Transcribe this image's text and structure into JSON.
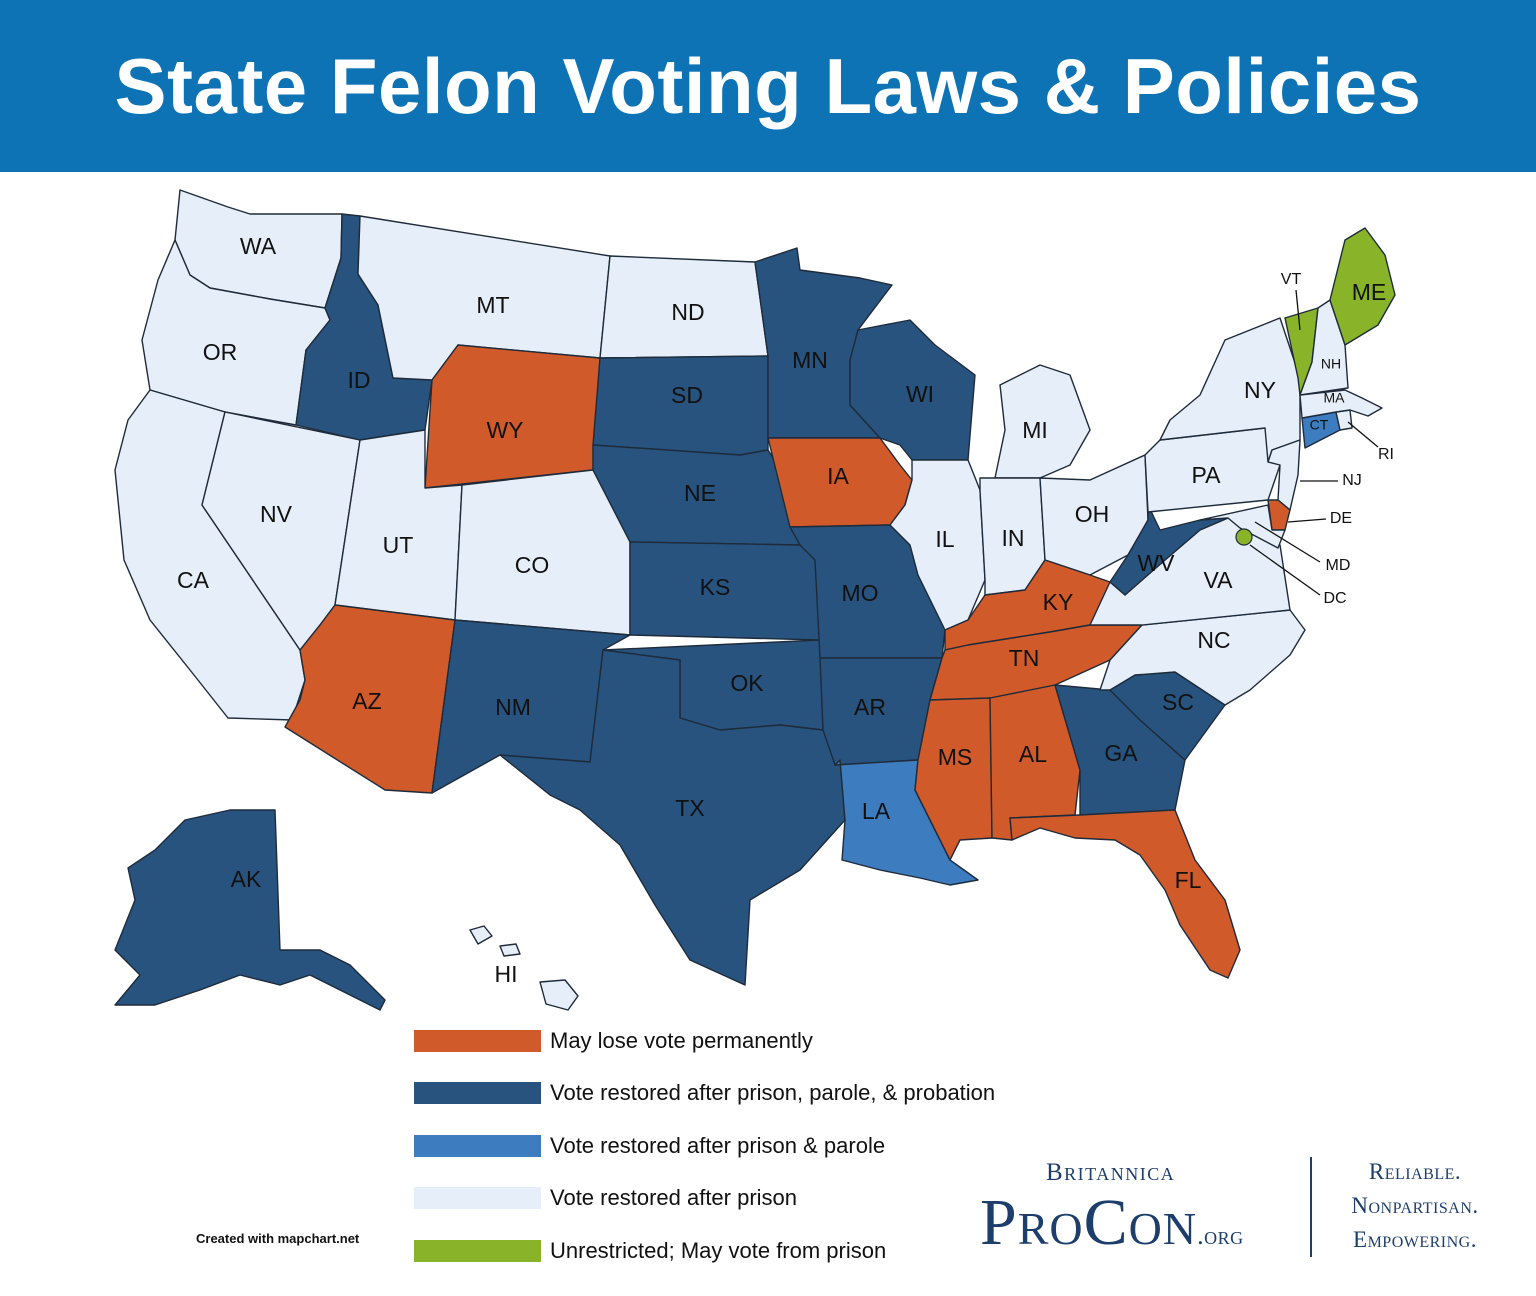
{
  "title": "State Felon Voting Laws & Policies",
  "categories": {
    "permanent": {
      "label": "May lose vote permanently",
      "color": "#d15a2a"
    },
    "ppp": {
      "label": "Vote restored after prison, parole, & probation",
      "color": "#28537e"
    },
    "pp": {
      "label": "Vote restored after prison & parole",
      "color": "#3e7cc0"
    },
    "prison": {
      "label": "Vote restored after prison",
      "color": "#e6eef9"
    },
    "unrestricted": {
      "label": "Unrestricted; May vote from prison",
      "color": "#89b42a"
    }
  },
  "states": [
    {
      "abbr": "WA",
      "category": "prison"
    },
    {
      "abbr": "OR",
      "category": "prison"
    },
    {
      "abbr": "CA",
      "category": "prison"
    },
    {
      "abbr": "NV",
      "category": "prison"
    },
    {
      "abbr": "ID",
      "category": "ppp"
    },
    {
      "abbr": "MT",
      "category": "prison"
    },
    {
      "abbr": "WY",
      "category": "permanent"
    },
    {
      "abbr": "UT",
      "category": "prison"
    },
    {
      "abbr": "CO",
      "category": "prison"
    },
    {
      "abbr": "AZ",
      "category": "permanent"
    },
    {
      "abbr": "NM",
      "category": "ppp"
    },
    {
      "abbr": "ND",
      "category": "prison"
    },
    {
      "abbr": "SD",
      "category": "ppp"
    },
    {
      "abbr": "NE",
      "category": "ppp"
    },
    {
      "abbr": "KS",
      "category": "ppp"
    },
    {
      "abbr": "OK",
      "category": "ppp"
    },
    {
      "abbr": "TX",
      "category": "ppp"
    },
    {
      "abbr": "MN",
      "category": "ppp"
    },
    {
      "abbr": "IA",
      "category": "permanent"
    },
    {
      "abbr": "MO",
      "category": "ppp"
    },
    {
      "abbr": "AR",
      "category": "ppp"
    },
    {
      "abbr": "LA",
      "category": "pp"
    },
    {
      "abbr": "WI",
      "category": "ppp"
    },
    {
      "abbr": "IL",
      "category": "prison"
    },
    {
      "abbr": "MI",
      "category": "prison"
    },
    {
      "abbr": "IN",
      "category": "prison"
    },
    {
      "abbr": "OH",
      "category": "prison"
    },
    {
      "abbr": "KY",
      "category": "permanent"
    },
    {
      "abbr": "TN",
      "category": "permanent"
    },
    {
      "abbr": "MS",
      "category": "permanent"
    },
    {
      "abbr": "AL",
      "category": "permanent"
    },
    {
      "abbr": "GA",
      "category": "ppp"
    },
    {
      "abbr": "FL",
      "category": "permanent"
    },
    {
      "abbr": "SC",
      "category": "ppp"
    },
    {
      "abbr": "NC",
      "category": "prison"
    },
    {
      "abbr": "VA",
      "category": "prison"
    },
    {
      "abbr": "WV",
      "category": "ppp"
    },
    {
      "abbr": "PA",
      "category": "prison"
    },
    {
      "abbr": "NY",
      "category": "prison"
    },
    {
      "abbr": "NJ",
      "category": "prison"
    },
    {
      "abbr": "DE",
      "category": "permanent"
    },
    {
      "abbr": "MD",
      "category": "prison"
    },
    {
      "abbr": "DC",
      "category": "unrestricted"
    },
    {
      "abbr": "CT",
      "category": "pp"
    },
    {
      "abbr": "RI",
      "category": "prison"
    },
    {
      "abbr": "MA",
      "category": "prison"
    },
    {
      "abbr": "VT",
      "category": "unrestricted"
    },
    {
      "abbr": "NH",
      "category": "prison"
    },
    {
      "abbr": "ME",
      "category": "unrestricted"
    },
    {
      "abbr": "AK",
      "category": "ppp"
    },
    {
      "abbr": "HI",
      "category": "prison"
    }
  ],
  "credit": "Created with mapchart.net",
  "brand": {
    "top": "Britannica",
    "main": "ProCon",
    "suffix": ".org",
    "tagline": [
      "Reliable.",
      "Nonpartisan.",
      "Empowering."
    ]
  }
}
